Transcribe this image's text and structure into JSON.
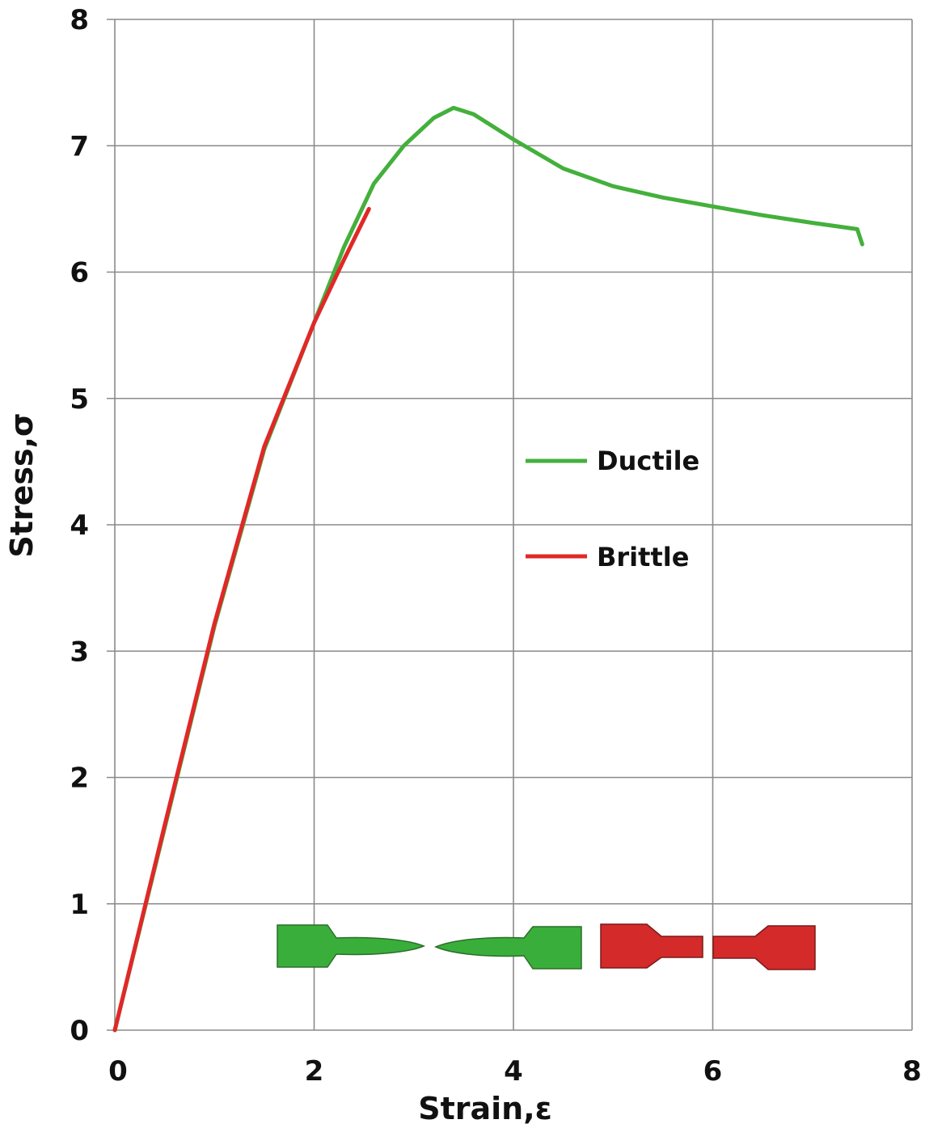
{
  "chart_data": {
    "type": "line",
    "xlabel": "Strain,ε",
    "ylabel": "Stress,σ",
    "xlim": [
      0,
      8
    ],
    "ylim": [
      0,
      8
    ],
    "xticks": [
      0,
      2,
      4,
      6,
      8
    ],
    "yticks": [
      0,
      1,
      2,
      3,
      4,
      5,
      6,
      7,
      8
    ],
    "grid": true,
    "legend": "center-right",
    "series": [
      {
        "name": "Ductile",
        "color": "#44b03c",
        "x": [
          0,
          0.5,
          1.0,
          1.5,
          2.0,
          2.3,
          2.6,
          2.9,
          3.2,
          3.4,
          3.6,
          4.0,
          4.5,
          5.0,
          5.5,
          6.0,
          6.5,
          7.0,
          7.45,
          7.5
        ],
        "y": [
          0,
          1.6,
          3.2,
          4.6,
          5.6,
          6.2,
          6.7,
          7.0,
          7.22,
          7.3,
          7.25,
          7.05,
          6.82,
          6.68,
          6.59,
          6.52,
          6.45,
          6.39,
          6.34,
          6.22
        ]
      },
      {
        "name": "Brittle",
        "color": "#e02828",
        "x": [
          0,
          0.5,
          1.0,
          1.5,
          2.0,
          2.3,
          2.55
        ],
        "y": [
          0,
          1.62,
          3.22,
          4.62,
          5.6,
          6.1,
          6.5
        ]
      }
    ]
  }
}
